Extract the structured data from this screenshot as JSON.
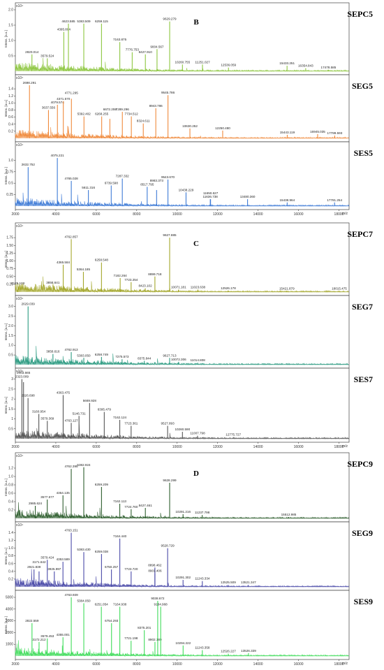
{
  "chart_data": [
    {
      "type": "line",
      "group": "B",
      "panel": "SEPC5",
      "color": "#8dc63f",
      "y_exponent": "x10⁴",
      "ylabel": "Intens. [a.u.]",
      "ylim": [
        0,
        2.0
      ],
      "yticks": [
        0.5,
        1.0,
        1.5,
        2.0
      ],
      "yticklabels": [
        "0.5",
        "1.0",
        "1.5",
        "2.0"
      ],
      "peaks": [
        [
          2820.014,
          0.55
        ],
        [
          3579.524,
          0.42
        ],
        [
          4395.804,
          1.28
        ],
        [
          4623.585,
          1.55
        ],
        [
          5383.509,
          1.55
        ],
        [
          6259.115,
          1.55
        ],
        [
          7163.875,
          0.95
        ],
        [
          7776.753,
          0.62
        ],
        [
          8427.91,
          0.55
        ],
        [
          9004.567,
          0.72
        ],
        [
          9629.279,
          1.62
        ],
        [
          10260.755,
          0.22
        ],
        [
          11251.027,
          0.22
        ],
        [
          12536.059,
          0.12
        ],
        [
          15433.251,
          0.18
        ],
        [
          16354.843,
          0.1
        ],
        [
          17478.585,
          0.05
        ]
      ],
      "xlabel": "",
      "xticks": []
    },
    {
      "type": "line",
      "group": "B",
      "panel": "SEG5",
      "color": "#f08a3c",
      "y_exponent": "x10⁴",
      "ylabel": "Intens. [a.u.]",
      "ylim": [
        0,
        1.6
      ],
      "yticks": [
        0.2,
        0.4,
        0.6,
        0.8,
        1.0,
        1.2,
        1.4
      ],
      "yticklabels": [
        "0.2",
        "0.4",
        "0.6",
        "0.8",
        "1.0",
        "1.2",
        "1.4"
      ],
      "peaks": [
        [
          2698.291,
          1.5
        ],
        [
          3637.556,
          0.8
        ],
        [
          4079.574,
          0.95
        ],
        [
          4371.57,
          1.05
        ],
        [
          4771.295,
          1.12
        ],
        [
          5392.402,
          0.62
        ],
        [
          6268.255,
          0.62
        ],
        [
          6672.259,
          0.55
        ],
        [
          7289.296,
          0.75
        ],
        [
          7734.512,
          0.62
        ],
        [
          8324.611,
          0.42
        ],
        [
          8943.786,
          0.85
        ],
        [
          9545.786,
          1.22
        ],
        [
          10630.252,
          0.28
        ],
        [
          12250.48,
          0.22
        ],
        [
          15443.119,
          0.1
        ],
        [
          16945.035,
          0.12
        ],
        [
          17789.593,
          0.08
        ]
      ],
      "xlabel": "",
      "xticks": []
    },
    {
      "type": "line",
      "group": "B",
      "panel": "SES5",
      "color": "#3d7ad6",
      "y_exponent": "x10⁴",
      "ylabel": "Intens. [a.u.]",
      "ylim": [
        0,
        1.25
      ],
      "yticks": [
        0.25,
        0.5,
        0.75,
        1.0
      ],
      "yticklabels": [
        "0.25",
        "0.5",
        "0.75",
        "1.0"
      ],
      "peaks": [
        [
          2632.752,
          0.85
        ],
        [
          4075.221,
          1.05
        ],
        [
          4765.028,
          0.55
        ],
        [
          5611.316,
          0.35
        ],
        [
          6739.598,
          0.45
        ],
        [
          7287.332,
          0.6
        ],
        [
          8517.795,
          0.42
        ],
        [
          8983.373,
          0.35
        ],
        [
          9543.67,
          0.58
        ],
        [
          10438.229,
          0.3
        ],
        [
          11636.738,
          0.15
        ],
        [
          11650.627,
          0.15
        ],
        [
          13480.36,
          0.15
        ],
        [
          15438.964,
          0.08
        ],
        [
          17781.254,
          0.08
        ]
      ],
      "xlabel": "m/z",
      "xticks": [
        2000,
        4000,
        6000,
        8000,
        10000,
        12000,
        14000,
        16000,
        18000
      ],
      "xticklabels": [
        "2000",
        "4000",
        "6000",
        "8000",
        "10000",
        "12000",
        "14000",
        "16000",
        "18000"
      ]
    },
    {
      "type": "line",
      "group": "C",
      "panel": "SEPC7",
      "color": "#a4a72c",
      "y_exponent": "x10⁴",
      "ylabel": "Intens. [a.u.]",
      "ylim": [
        0,
        2.0
      ],
      "yticks": [
        0.25,
        0.5,
        0.75,
        1.0,
        1.25,
        1.5,
        1.75
      ],
      "yticklabels": [
        "0.25",
        "0.50",
        "0.75",
        "1.00",
        "1.25",
        "1.50",
        "1.75"
      ],
      "peaks": [
        [
          2125.103,
          0.2
        ],
        [
          3858.641,
          0.22
        ],
        [
          4365.584,
          0.88
        ],
        [
          4762.857,
          1.7
        ],
        [
          5364.185,
          0.65
        ],
        [
          6258.548,
          0.95
        ],
        [
          7182.264,
          0.45
        ],
        [
          7723.254,
          0.32
        ],
        [
          8423.102,
          0.12
        ],
        [
          8899.718,
          0.5
        ],
        [
          9627.885,
          1.75
        ],
        [
          10071.181,
          0.08
        ],
        [
          11023.638,
          0.08
        ],
        [
          12526.178,
          0.05
        ],
        [
          15421.879,
          0.03
        ],
        [
          18015.475,
          0.03
        ]
      ],
      "xlabel": "",
      "xticks": []
    },
    {
      "type": "line",
      "group": "C",
      "panel": "SEG7",
      "color": "#2a9a80",
      "y_exponent": "x10⁴",
      "ylabel": "Intens. [a.u.]",
      "ylim": [
        0,
        3.2
      ],
      "yticks": [
        0.5,
        1.0,
        1.5,
        2.0,
        2.5,
        3.0
      ],
      "yticklabels": [
        "0.5",
        "1.0",
        "1.5",
        "2.0",
        "2.5",
        "3.0"
      ],
      "peaks": [
        [
          2629.039,
          3.0
        ],
        [
          3858.616,
          0.55
        ],
        [
          4762.913,
          0.65
        ],
        [
          5383.05,
          0.35
        ],
        [
          6258.749,
          0.4
        ],
        [
          7275.573,
          0.28
        ],
        [
          8375.844,
          0.2
        ],
        [
          9627.713,
          0.35
        ],
        [
          10072.306,
          0.15
        ],
        [
          11014.808,
          0.1
        ]
      ],
      "xlabel": "",
      "xticks": []
    },
    {
      "type": "line",
      "group": "C",
      "panel": "SES7",
      "color": "#555555",
      "y_exponent": "x10⁴",
      "ylabel": "Intens. [a.u.]",
      "ylim": [
        0,
        3.2
      ],
      "yticks": [
        0.5,
        1.0,
        1.5,
        2.0,
        2.5,
        3.0
      ],
      "yticklabels": [
        "0.5",
        "1",
        "1.5",
        "2",
        "2.5",
        "3"
      ],
      "peaks": [
        [
          2323.009,
          3.0
        ],
        [
          2403.665,
          2.85
        ],
        [
          2626.698,
          2.05
        ],
        [
          3160.954,
          1.25
        ],
        [
          3579.369,
          0.9
        ],
        [
          4363.475,
          2.2
        ],
        [
          4763.127,
          0.8
        ],
        [
          5146.731,
          1.15
        ],
        [
          5669.928,
          1.8
        ],
        [
          6395.479,
          1.35
        ],
        [
          7162.124,
          0.95
        ],
        [
          7723.361,
          0.65
        ],
        [
          9527.893,
          0.65
        ],
        [
          10260.59,
          0.35
        ],
        [
          11007.798,
          0.15
        ],
        [
          12775.727,
          0.08
        ]
      ],
      "xlabel": "m/z",
      "xticks": [
        2000,
        4000,
        6000,
        8000,
        10000,
        12000,
        14000,
        16000,
        18000
      ],
      "xticklabels": [
        "2000",
        "4000",
        "6000",
        "8000",
        "10000",
        "12000",
        "14000",
        "16000",
        "18000"
      ]
    },
    {
      "type": "line",
      "group": "D",
      "panel": "SEPC9",
      "color": "#2e5e2e",
      "y_exponent": "x10⁴",
      "ylabel": "Intens. [a.u.]",
      "ylim": [
        0,
        1.4
      ],
      "yticks": [
        0.2,
        0.4,
        0.6,
        0.8,
        1.0,
        1.2
      ],
      "yticklabels": [
        "0.2",
        "0.4",
        "0.6",
        "0.8",
        "1.0",
        "1.2"
      ],
      "peaks": [
        [
          2985.624,
          0.3
        ],
        [
          3577.577,
          0.45
        ],
        [
          4354.135,
          0.55
        ],
        [
          4762.395,
          1.18
        ],
        [
          5382.924,
          1.22
        ],
        [
          6259.209,
          0.75
        ],
        [
          7162.113,
          0.35
        ],
        [
          7724.76,
          0.22
        ],
        [
          8427.461,
          0.25
        ],
        [
          9628.299,
          0.85
        ],
        [
          10291.216,
          0.1
        ],
        [
          11237.798,
          0.08
        ],
        [
          15512.985,
          0.03
        ]
      ],
      "xlabel": "",
      "xticks": []
    },
    {
      "type": "line",
      "group": "D",
      "panel": "SEG9",
      "color": "#4a4aa8",
      "y_exponent": "x10⁴",
      "ylabel": "Intens. [a.u.]",
      "ylim": [
        0,
        1.5
      ],
      "yticks": [
        0.2,
        0.4,
        0.6,
        0.8,
        1.0,
        1.2,
        1.4
      ],
      "yticklabels": [
        "0.2",
        "0.4",
        "0.6",
        "0.8",
        "1.0",
        "1.2",
        "1.4"
      ],
      "peaks": [
        [
          2921.839,
          0.45
        ],
        [
          3171.642,
          0.4
        ],
        [
          3579.424,
          0.7
        ],
        [
          3925.997,
          0.4
        ],
        [
          4353.589,
          0.65
        ],
        [
          4763.151,
          1.4
        ],
        [
          5383.43,
          0.9
        ],
        [
          6259.038,
          0.85
        ],
        [
          6750.257,
          0.45
        ],
        [
          7164.44,
          1.25
        ],
        [
          7723.72,
          0.4
        ],
        [
          8898.462,
          0.5
        ],
        [
          8901.406,
          0.35
        ],
        [
          9528.729,
          1.0
        ],
        [
          10291.302,
          0.18
        ],
        [
          11243.334,
          0.15
        ],
        [
          12525.509,
          0.05
        ],
        [
          13521.347,
          0.05
        ]
      ],
      "xlabel": "",
      "xticks": []
    },
    {
      "type": "line",
      "group": "D",
      "panel": "SES9",
      "color": "#3fdc5a",
      "y_exponent": "",
      "ylabel": "Intens. [a.u.]",
      "ylim": [
        0,
        5000
      ],
      "yticks": [
        1000,
        2000,
        3000,
        4000,
        5000
      ],
      "yticklabels": [
        "1000",
        "2000",
        "3000",
        "4000",
        "5000"
      ],
      "peaks": [
        [
          2822.559,
          2800
        ],
        [
          3172.212,
          1200
        ],
        [
          3579.453,
          1500
        ],
        [
          4355.001,
          1600
        ],
        [
          4763.939,
          5000
        ],
        [
          5384.05,
          4500
        ],
        [
          6251.054,
          4200
        ],
        [
          6754.293,
          2800
        ],
        [
          7164.938,
          4200
        ],
        [
          7721.198,
          1300
        ],
        [
          8375.201,
          2200
        ],
        [
          8902.189,
          1200
        ],
        [
          9038.672,
          4700
        ],
        [
          9184.968,
          4200
        ],
        [
          10294.222,
          900
        ],
        [
          11243.358,
          500
        ],
        [
          12526.227,
          200
        ],
        [
          13526.339,
          250
        ]
      ],
      "xlabel": "m/z",
      "xticks": [
        2000,
        4000,
        6000,
        8000,
        10000,
        12000,
        14000,
        16000,
        18000
      ],
      "xticklabels": [
        "2000",
        "4000",
        "6000",
        "8000",
        "10000",
        "12000",
        "14000",
        "16000",
        "18000"
      ]
    }
  ]
}
